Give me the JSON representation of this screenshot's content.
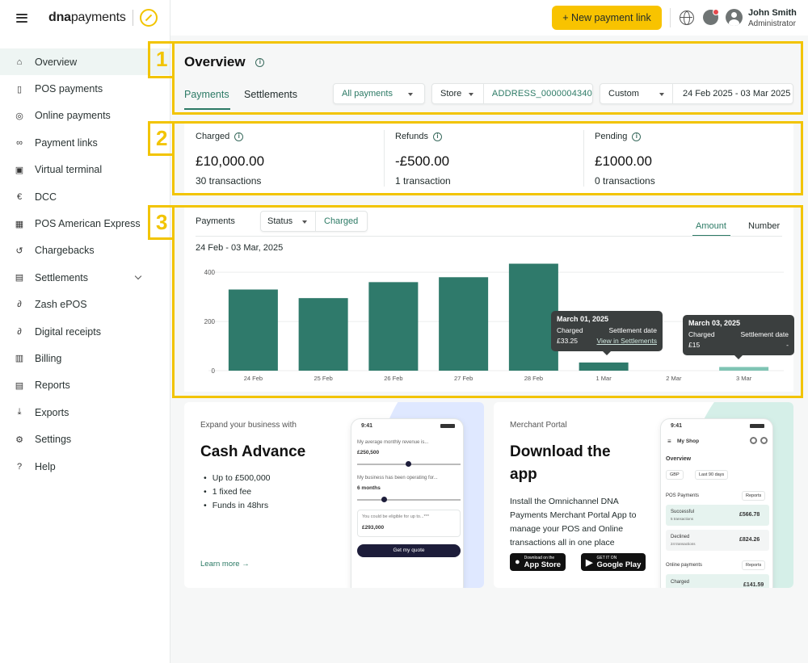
{
  "brand": {
    "logo_bold": "dna",
    "logo_rest": "payments"
  },
  "sidebar": {
    "items": [
      {
        "label": "Overview",
        "icon": "home-icon",
        "glyph": "⌂"
      },
      {
        "label": "POS payments",
        "icon": "pos-terminal-icon",
        "glyph": "▯"
      },
      {
        "label": "Online payments",
        "icon": "online-payments-icon",
        "glyph": "◎"
      },
      {
        "label": "Payment links",
        "icon": "link-icon",
        "glyph": "∞"
      },
      {
        "label": "Virtual terminal",
        "icon": "virtual-terminal-icon",
        "glyph": "▣"
      },
      {
        "label": "DCC",
        "icon": "currency-icon",
        "glyph": "€"
      },
      {
        "label": "POS American Express",
        "icon": "amex-icon",
        "glyph": "▦"
      },
      {
        "label": "Chargebacks",
        "icon": "chargeback-icon",
        "glyph": "↺"
      },
      {
        "label": "Settlements",
        "icon": "settlements-icon",
        "glyph": "▤"
      },
      {
        "label": "Zash ePOS",
        "icon": "zash-icon",
        "glyph": "∂"
      },
      {
        "label": "Digital receipts",
        "icon": "receipt-icon",
        "glyph": "∂"
      },
      {
        "label": "Billing",
        "icon": "billing-icon",
        "glyph": "▥"
      },
      {
        "label": "Reports",
        "icon": "reports-icon",
        "glyph": "▤"
      },
      {
        "label": "Exports",
        "icon": "export-icon",
        "glyph": "⤓"
      },
      {
        "label": "Settings",
        "icon": "gear-icon",
        "glyph": "⚙"
      },
      {
        "label": "Help",
        "icon": "help-icon",
        "glyph": "?"
      }
    ]
  },
  "topbar": {
    "new_payment_link": "+ New payment link",
    "user_name": "John Smith",
    "user_role": "Administrator"
  },
  "annotations": {
    "n1": "1",
    "n2": "2",
    "n3": "3"
  },
  "overview": {
    "title": "Overview",
    "tabs": {
      "payments": "Payments",
      "settlements": "Settlements"
    },
    "filters": {
      "payment_type": "All payments",
      "store_label": "Store",
      "store_value": "ADDRESS_0000004340",
      "range_label": "Custom",
      "range_value": "24 Feb 2025 - 03 Mar 2025"
    }
  },
  "stats": [
    {
      "label": "Charged",
      "value": "£10,000.00",
      "sub": "30 transactions"
    },
    {
      "label": "Refunds",
      "value": "-£500.00",
      "sub": "1 transaction"
    },
    {
      "label": "Pending",
      "value": "£1000.00",
      "sub": "0 transactions"
    }
  ],
  "chart_panel": {
    "label": "Payments",
    "status_label": "Status",
    "status_value": "Charged",
    "toggle_amount": "Amount",
    "toggle_number": "Number",
    "range": "24 Feb - 03 Mar, 2025"
  },
  "chart_data": {
    "type": "bar",
    "categories": [
      "24 Feb",
      "25 Feb",
      "26 Feb",
      "27 Feb",
      "28 Feb",
      "1 Mar",
      "2 Mar",
      "3 Mar"
    ],
    "values": [
      330,
      295,
      360,
      380,
      435,
      33.25,
      0,
      15
    ],
    "highlighted": [
      false,
      false,
      false,
      false,
      false,
      false,
      false,
      true
    ],
    "yticks": [
      0,
      200,
      400
    ],
    "ylim": [
      0,
      440
    ],
    "grid": true,
    "colors": {
      "bar": "#2f7a6b",
      "bar_highlight": "#7fc4b4",
      "grid": "#eceeee"
    }
  },
  "tooltips": [
    {
      "title": "March 01, 2025",
      "col1_label": "Charged",
      "col2_label": "Settlement date",
      "col1_value": "£33.25",
      "col2_value": "View in Settlements"
    },
    {
      "title": "March 03, 2025",
      "col1_label": "Charged",
      "col2_label": "Settlement date",
      "col1_value": "£15",
      "col2_value": "-"
    }
  ],
  "promo_cash": {
    "eyebrow": "Expand your business with",
    "title": "Cash Advance",
    "bullets": [
      "Up to £500,000",
      "1 fixed fee",
      "Funds in 48hrs"
    ],
    "learn_more": "Learn more →",
    "phone": {
      "time": "9:41",
      "q1": "My average monthly revenue is...",
      "a1": "£250,500",
      "q2": "My business has been operating for...",
      "a2": "6 months",
      "eligible": "You could be eligible for up to...***",
      "eligible_value": "£293,000",
      "button": "Get my quote"
    }
  },
  "promo_app": {
    "eyebrow": "Merchant Portal",
    "title_line1": "Download the",
    "title_line2": "app",
    "text": "Install the Omnichannel DNA Payments Merchant Portal App to manage your POS and Online transactions all in one place",
    "appstore_small": "Download on the",
    "appstore": "App Store",
    "googleplay_small": "GET IT ON",
    "googleplay": "Google Play",
    "phone": {
      "time": "9:41",
      "shop": "My Shop",
      "overview": "Overview",
      "currency": "GBP",
      "period": "Last 90 days",
      "pos_payments": "POS Payments",
      "reports": "Reports",
      "successful": "Successful",
      "successful_sub": "5 transactions",
      "successful_value": "£566.78",
      "declined": "Declined",
      "declined_sub": "24 transactions",
      "declined_value": "£824.26",
      "online_payments": "Online payments",
      "charged": "Charged",
      "charged_value": "£141.59"
    }
  }
}
